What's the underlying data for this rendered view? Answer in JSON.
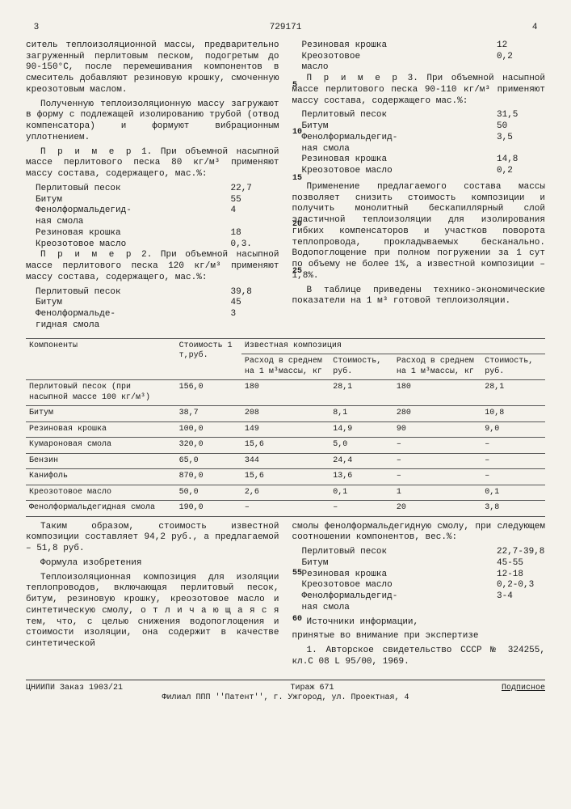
{
  "header": {
    "page_left": "3",
    "doc_no": "729171",
    "page_right": "4"
  },
  "col_left": {
    "p1": "ситель теплоизоляционной массы, предварительно загруженный перлитовым песком, подогретым до 90-150°С, после перемешивания компонентов в смеситель добавляют резиновую крошку, смоченную креозотовым маслом.",
    "p2": "Полученную теплоизоляционную массу загружают в форму с подлежащей изолированию трубой (отвод компенсатора) и формуют вибрационным уплотнением.",
    "ex1_head_a": "П р и м е р",
    "ex1_head_b": "1. При объемной насыпной массе перлитового песка 80 кг/м³ применяют массу состава, содержащего, мас.%:",
    "ex1": [
      {
        "k": "Перлитовый песок",
        "v": "22,7"
      },
      {
        "k": "Битум",
        "v": "55"
      },
      {
        "k": "Фенолформальдегид-",
        "v": "4"
      },
      {
        "k": "ная смола",
        "v": ""
      },
      {
        "k": "Резиновая крошка",
        "v": "18"
      },
      {
        "k": "Креозотовое масло",
        "v": "0,3."
      }
    ],
    "ex2_head_a": "П р и м е р",
    "ex2_head_b": "2. При объемной насыпной массе перлитового песка 120 кг/м³ применяют массу состава, содержащего, мас.%:",
    "ex2": [
      {
        "k": "Перлитовый песок",
        "v": "39,8"
      },
      {
        "k": "Битум",
        "v": "45"
      },
      {
        "k": "Фенолформальде-",
        "v": "3"
      },
      {
        "k": "гидная смола",
        "v": ""
      }
    ]
  },
  "col_right": {
    "top": [
      {
        "k": "Резиновая крошка",
        "v": "12"
      },
      {
        "k": "Креозотовое",
        "v": "0,2"
      },
      {
        "k": "масло",
        "v": ""
      }
    ],
    "ex3_head_a": "П р и м е р",
    "ex3_head_b": "3. При объемной насыпной массе перлитового песка 90-110 кг/м³ применяют массу состава, содержащего мас.%:",
    "ex3": [
      {
        "k": "Перлитовый песок",
        "v": "31,5"
      },
      {
        "k": "Битум",
        "v": "50"
      },
      {
        "k": "Фенолформальдегид-",
        "v": "3,5"
      },
      {
        "k": "ная смола",
        "v": ""
      },
      {
        "k": "Резиновая крошка",
        "v": "14,8"
      },
      {
        "k": "Креозотовое масло",
        "v": "0,2"
      }
    ],
    "p2": "Применение предлагаемого состава массы позволяет снизить стоимость композиции и получить монолитный бескапиллярный слой эластичной теплоизоляции для изолирования гибких компенсаторов и участков поворота теплопровода, прокладываемых бесканально. Водопоглощение при полном погружении за 1 сут по объему не более 1%, а известной композиции – 1,8%.",
    "p3": "В таблице приведены технико-экономические показатели на 1 м³ готовой теплоизоляции."
  },
  "margins": {
    "m5": "5",
    "m10": "10",
    "m15": "15",
    "m20": "20",
    "m25": "25"
  },
  "table": {
    "head": {
      "c0": "Компоненты",
      "c1": "Стоимость 1 т,руб.",
      "group": "Известная композиция",
      "c2": "Расход в среднем на 1 м³массы, кг",
      "c3": "Стоимость, руб.",
      "c4": "Расход в среднем на 1 м³массы, кг",
      "c5": "Стоимость, руб."
    },
    "rows": [
      {
        "c0": "Перлитовый песок (при насыпной массе 100 кг/м³)",
        "c1": "156,0",
        "c2": "180",
        "c3": "28,1",
        "c4": "180",
        "c5": "28,1"
      },
      {
        "c0": "Битум",
        "c1": "38,7",
        "c2": "208",
        "c3": "8,1",
        "c4": "280",
        "c5": "10,8"
      },
      {
        "c0": "Резиновая крошка",
        "c1": "100,0",
        "c2": "149",
        "c3": "14,9",
        "c4": "90",
        "c5": "9,0"
      },
      {
        "c0": "Кумароновая смола",
        "c1": "320,0",
        "c2": "15,6",
        "c3": "5,0",
        "c4": "–",
        "c5": "–"
      },
      {
        "c0": "Бензин",
        "c1": "65,0",
        "c2": "344",
        "c3": "24,4",
        "c4": "–",
        "c5": "–"
      },
      {
        "c0": "Канифоль",
        "c1": "870,0",
        "c2": "15,6",
        "c3": "13,6",
        "c4": "–",
        "c5": "–"
      },
      {
        "c0": "Креозотовое масло",
        "c1": "50,0",
        "c2": "2,6",
        "c3": "0,1",
        "c4": "1",
        "c5": "0,1"
      },
      {
        "c0": "Фенолформальдегидная смола",
        "c1": "190,0",
        "c2": "–",
        "c3": "–",
        "c4": "20",
        "c5": "3,8"
      }
    ]
  },
  "bottom": {
    "left_p1": "Таким образом, стоимость известной композиции составляет 94,2 руб., а предлагаемой – 51,8 руб.",
    "left_h": "Формула изобретения",
    "left_p2": "Теплоизоляционная композиция для изоляции теплопроводов, включающая перлитовый песок, битум, резиновую крошку, креозотовое масло и синтетическую смолу, о т л и ч а ю щ а я с я  тем, что, с целью снижения водопоглощения и стоимости изоляции, она содержит в качестве синтетической",
    "right_p1": "смолы фенолформальдегидную смолу, при следующем соотношении компонентов, вес.%:",
    "right_list": [
      {
        "k": "Перлитовый песок",
        "v": "22,7-39,8"
      },
      {
        "k": "Битум",
        "v": "45-55"
      },
      {
        "k": "Резиновая крошка",
        "v": "12-18"
      },
      {
        "k": "Креозотовое масло",
        "v": "0,2-0,3"
      },
      {
        "k": "Фенолформальдегид-",
        "v": "3-4"
      },
      {
        "k": "ная смола",
        "v": ""
      }
    ],
    "right_h": "Источники информации,",
    "right_p2": "принятые во внимание при экспертизе",
    "right_p3": "1. Авторское свидетельство СССР № 324255, кл.C 08 L 95/00, 1969.",
    "m55": "55",
    "m60": "60"
  },
  "footer": {
    "l": "ЦНИИПИ Заказ 1903/21",
    "c": "Тираж 671",
    "r": "Подписное",
    "addr": "Филиал ППП ''Патент'', г. Ужгород, ул. Проектная, 4"
  }
}
